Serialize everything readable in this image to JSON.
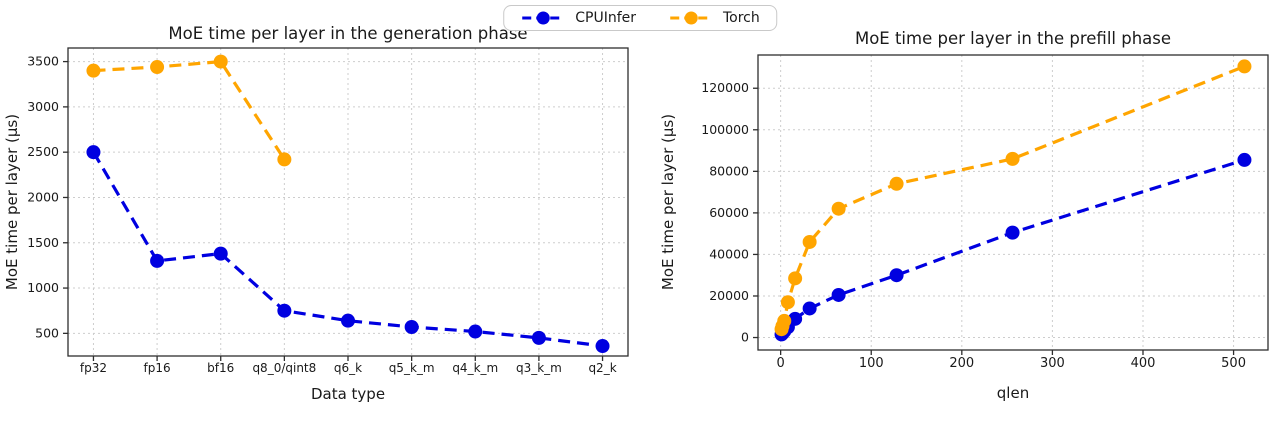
{
  "figure": {
    "background": "#ffffff",
    "grid": true,
    "legend_position": "top-center"
  },
  "legend": {
    "items": [
      {
        "label": "CPUInfer",
        "color": "#0000e0"
      },
      {
        "label": "Torch",
        "color": "#ffa500"
      }
    ]
  },
  "chart_data": [
    {
      "type": "line",
      "title": "MoE time per layer in the generation phase",
      "xlabel": "Data type",
      "ylabel": "MoE time per layer (µs)",
      "x_type": "categorical",
      "linestyle": "dashed",
      "marker": "o",
      "categories": [
        "fp32",
        "fp16",
        "bf16",
        "q8_0/qint8",
        "q6_k",
        "q5_k_m",
        "q4_k_m",
        "q3_k_m",
        "q2_k"
      ],
      "ylim": [
        250,
        3650
      ],
      "yticks": [
        500,
        1000,
        1500,
        2000,
        2500,
        3000,
        3500
      ],
      "series": [
        {
          "name": "CPUInfer",
          "color": "#0000e0",
          "values": [
            2500,
            1300,
            1380,
            750,
            640,
            570,
            520,
            450,
            360
          ]
        },
        {
          "name": "Torch",
          "color": "#ffa500",
          "values": [
            3400,
            3440,
            3500,
            2420,
            null,
            null,
            null,
            null,
            null
          ]
        }
      ]
    },
    {
      "type": "line",
      "title": "MoE time per layer in the prefill phase",
      "xlabel": "qlen",
      "ylabel": "MoE time per layer (µs)",
      "x_type": "numeric",
      "linestyle": "dashed",
      "marker": "o",
      "x": [
        1,
        2,
        4,
        8,
        16,
        32,
        64,
        128,
        256,
        512
      ],
      "xlim": [
        -25,
        538
      ],
      "xticks": [
        0,
        100,
        200,
        300,
        400,
        500
      ],
      "ylim": [
        -6000,
        136000
      ],
      "yticks": [
        0,
        20000,
        40000,
        60000,
        80000,
        100000,
        120000
      ],
      "series": [
        {
          "name": "CPUInfer",
          "color": "#0000e0",
          "values": [
            1500,
            2000,
            3000,
            5000,
            9000,
            14000,
            20500,
            30000,
            50500,
            85500
          ]
        },
        {
          "name": "Torch",
          "color": "#ffa500",
          "values": [
            4000,
            5500,
            8000,
            17000,
            28500,
            46000,
            62000,
            74000,
            86000,
            130500
          ]
        }
      ]
    }
  ]
}
